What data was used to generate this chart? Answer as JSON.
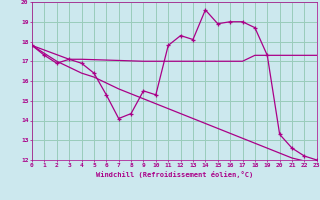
{
  "xlabel": "Windchill (Refroidissement éolien,°C)",
  "xlim": [
    0,
    23
  ],
  "ylim": [
    12,
    20
  ],
  "xticks": [
    0,
    1,
    2,
    3,
    4,
    5,
    6,
    7,
    8,
    9,
    10,
    11,
    12,
    13,
    14,
    15,
    16,
    17,
    18,
    19,
    20,
    21,
    22,
    23
  ],
  "yticks": [
    12,
    13,
    14,
    15,
    16,
    17,
    18,
    19,
    20
  ],
  "bg_color": "#cce8ee",
  "line_color": "#aa0088",
  "grid_color": "#99ccbb",
  "line1_x": [
    0,
    1,
    2,
    3,
    4,
    5,
    6,
    7,
    8,
    9,
    10,
    11,
    12,
    13,
    14,
    15,
    16,
    17,
    18,
    19,
    20,
    21,
    22,
    23
  ],
  "line1_y": [
    17.8,
    17.3,
    16.9,
    17.1,
    16.9,
    16.4,
    15.3,
    14.1,
    14.35,
    15.5,
    15.3,
    17.8,
    18.3,
    18.1,
    19.6,
    18.9,
    19.0,
    19.0,
    18.7,
    17.3,
    13.3,
    12.6,
    12.2,
    12.0
  ],
  "line2_x": [
    0,
    3,
    4,
    9,
    10,
    14,
    15,
    16,
    17,
    18,
    19,
    20,
    21,
    22,
    23
  ],
  "line2_y": [
    17.8,
    17.1,
    17.1,
    17.0,
    17.0,
    17.0,
    17.0,
    17.0,
    17.0,
    17.3,
    17.3,
    17.3,
    17.3,
    17.3,
    17.3
  ],
  "line3_x": [
    0,
    1,
    2,
    3,
    4,
    5,
    6,
    7,
    8,
    9,
    10,
    11,
    12,
    13,
    14,
    15,
    16,
    17,
    18,
    19,
    20,
    21,
    22,
    23
  ],
  "line3_y": [
    17.8,
    17.4,
    17.0,
    16.7,
    16.4,
    16.2,
    15.9,
    15.6,
    15.35,
    15.1,
    14.85,
    14.6,
    14.35,
    14.1,
    13.85,
    13.6,
    13.35,
    13.1,
    12.85,
    12.6,
    12.35,
    12.1,
    11.95,
    11.8
  ]
}
